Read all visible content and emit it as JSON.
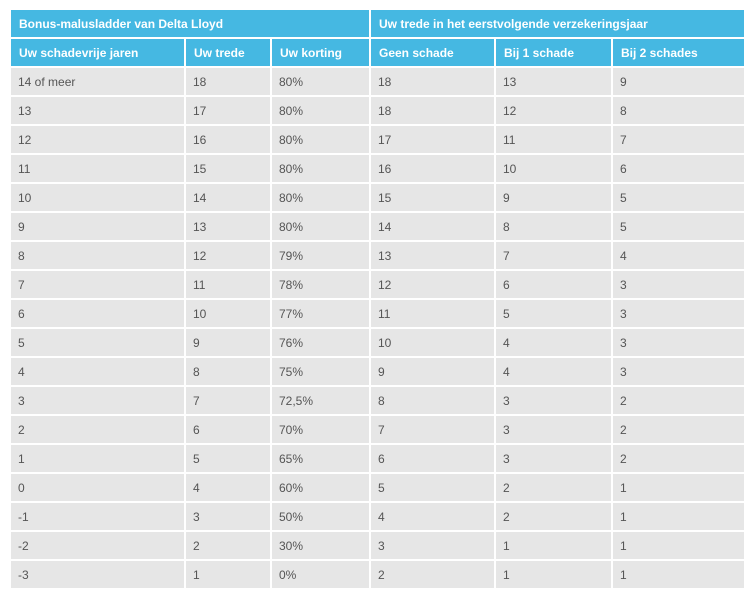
{
  "table": {
    "group_headers": [
      "Bonus-malusladder van Delta Lloyd",
      "Uw trede in het eerstvolgende verzekeringsjaar"
    ],
    "columns": [
      "Uw schadevrije jaren",
      "Uw trede",
      "Uw korting",
      "Geen schade",
      "Bij 1 schade",
      "Bij 2 schades"
    ],
    "rows": [
      [
        "14 of meer",
        "18",
        "80%",
        "18",
        "13",
        "9"
      ],
      [
        "13",
        "17",
        "80%",
        "18",
        "12",
        "8"
      ],
      [
        "12",
        "16",
        "80%",
        "17",
        "11",
        "7"
      ],
      [
        "11",
        "15",
        "80%",
        "16",
        "10",
        "6"
      ],
      [
        "10",
        "14",
        "80%",
        "15",
        "9",
        "5"
      ],
      [
        "9",
        "13",
        "80%",
        "14",
        "8",
        "5"
      ],
      [
        "8",
        "12",
        "79%",
        "13",
        "7",
        "4"
      ],
      [
        "7",
        "11",
        "78%",
        "12",
        "6",
        "3"
      ],
      [
        "6",
        "10",
        "77%",
        "11",
        "5",
        "3"
      ],
      [
        "5",
        "9",
        "76%",
        "10",
        "4",
        "3"
      ],
      [
        "4",
        "8",
        "75%",
        "9",
        "4",
        "3"
      ],
      [
        "3",
        "7",
        "72,5%",
        "8",
        "3",
        "2"
      ],
      [
        "2",
        "6",
        "70%",
        "7",
        "3",
        "2"
      ],
      [
        "1",
        "5",
        "65%",
        "6",
        "3",
        "2"
      ],
      [
        "0",
        "4",
        "60%",
        "5",
        "2",
        "1"
      ],
      [
        "-1",
        "3",
        "50%",
        "4",
        "2",
        "1"
      ],
      [
        "-2",
        "2",
        "30%",
        "3",
        "1",
        "1"
      ],
      [
        "-3",
        "1",
        "0%",
        "2",
        "1",
        "1"
      ]
    ]
  },
  "colors": {
    "header_bg": "#45b8e2",
    "header_text": "#ffffff",
    "cell_bg": "#e6e6e6",
    "cell_text": "#555555"
  }
}
